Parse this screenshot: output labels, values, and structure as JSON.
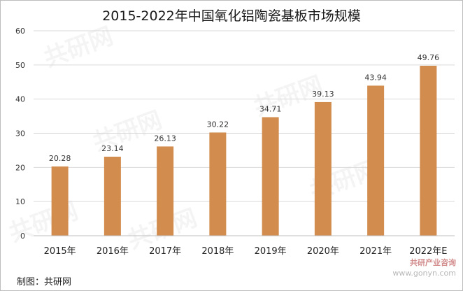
{
  "title": "2015-2022年中国氧化铝陶瓷基板市场规模",
  "source": "制图：共研网",
  "watermark": "共研网",
  "watermark_url": "www.gonyn.com",
  "corner_logo": {
    "brand": "共研产业咨询",
    "url": "www.gonyn.com"
  },
  "colors": {
    "bar": "#D18C4E",
    "grid": "#d9d9d9",
    "text": "#333333"
  },
  "chart_data": {
    "type": "bar",
    "title": "2015-2022年中国氧化铝陶瓷基板市场规模",
    "categories": [
      "2015年",
      "2016年",
      "2017年",
      "2018年",
      "2019年",
      "2020年",
      "2021年",
      "2022年E"
    ],
    "values": [
      20.28,
      23.14,
      26.13,
      30.22,
      34.71,
      39.13,
      43.94,
      49.76
    ],
    "value_labels": [
      "20.28",
      "23.14",
      "26.13",
      "30.22",
      "34.71",
      "39.13",
      "43.94",
      "49.76"
    ],
    "yticks": [
      "0",
      "10",
      "20",
      "30",
      "40",
      "50",
      "60"
    ],
    "ylim": [
      0,
      60
    ],
    "grid": true,
    "legend": "none"
  }
}
